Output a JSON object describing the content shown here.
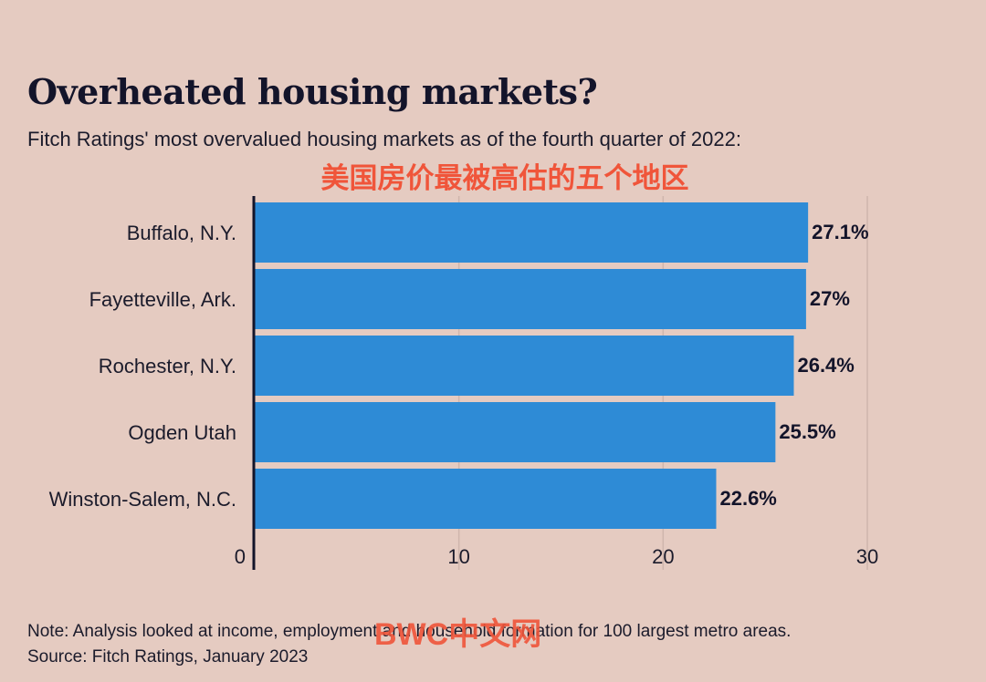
{
  "title": "Overheated housing markets?",
  "subtitle": "Fitch Ratings' most overvalued housing markets as of the fourth quarter of 2022:",
  "overlay_caption": "美国房价最被高估的五个地区",
  "note": "Note: Analysis looked at income, employment and household formation for 100 largest metro areas.",
  "source": "Source: Fitch Ratings, January 2023",
  "watermark": "BWC中文网",
  "colors": {
    "bar": "#2e8bd6",
    "background": "#e5cbc1",
    "grid": "#cfb6ad",
    "axis": "#13142a"
  },
  "chart_data": {
    "type": "bar",
    "orientation": "horizontal",
    "categories": [
      "Buffalo, N.Y.",
      "Fayetteville, Ark.",
      "Rochester, N.Y.",
      "Ogden Utah",
      "Winston-Salem, N.C."
    ],
    "values": [
      27.1,
      27,
      26.4,
      25.5,
      22.6
    ],
    "value_labels": [
      "27.1%",
      "27%",
      "26.4%",
      "25.5%",
      "22.6%"
    ],
    "xlim": [
      0,
      30
    ],
    "xticks": [
      0,
      10,
      20,
      30
    ],
    "grid": true,
    "legend": "none"
  }
}
